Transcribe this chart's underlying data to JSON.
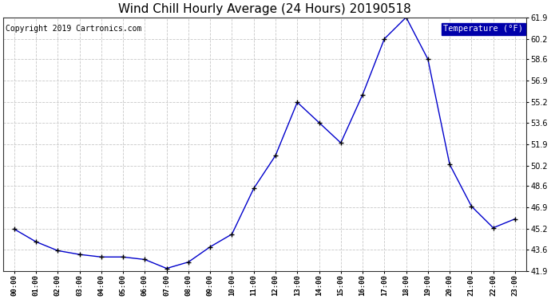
{
  "title": "Wind Chill Hourly Average (24 Hours) 20190518",
  "copyright": "Copyright 2019 Cartronics.com",
  "legend_label": "Temperature (°F)",
  "hours": [
    0,
    1,
    2,
    3,
    4,
    5,
    6,
    7,
    8,
    9,
    10,
    11,
    12,
    13,
    14,
    15,
    16,
    17,
    18,
    19,
    20,
    21,
    22,
    23
  ],
  "x_labels": [
    "00:00",
    "01:00",
    "02:00",
    "03:00",
    "04:00",
    "05:00",
    "06:00",
    "07:00",
    "08:00",
    "09:00",
    "10:00",
    "11:00",
    "12:00",
    "13:00",
    "14:00",
    "15:00",
    "16:00",
    "17:00",
    "18:00",
    "19:00",
    "20:00",
    "21:00",
    "22:00",
    "23:00"
  ],
  "values": [
    45.2,
    44.2,
    43.5,
    43.2,
    43.0,
    43.0,
    42.8,
    42.1,
    42.6,
    43.8,
    44.8,
    48.4,
    51.0,
    55.2,
    53.6,
    52.0,
    55.8,
    60.2,
    61.9,
    58.6,
    50.3,
    47.0,
    45.3,
    46.0
  ],
  "ylim": [
    41.9,
    61.9
  ],
  "yticks": [
    41.9,
    43.6,
    45.2,
    46.9,
    48.6,
    50.2,
    51.9,
    53.6,
    55.2,
    56.9,
    58.6,
    60.2,
    61.9
  ],
  "line_color": "#0000cc",
  "marker_color": "#000000",
  "bg_color": "#ffffff",
  "grid_color": "#c8c8c8",
  "title_fontsize": 11,
  "copyright_fontsize": 7,
  "legend_bg": "#0000aa",
  "legend_fg": "#ffffff"
}
